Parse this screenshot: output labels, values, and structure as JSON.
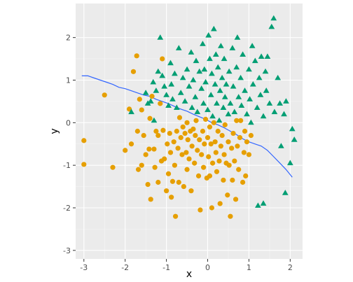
{
  "chart_data": {
    "type": "scatter",
    "title": "",
    "xlabel": "x",
    "ylabel": "y",
    "xlim": [
      -3.2,
      2.3
    ],
    "ylim": [
      -3.2,
      2.8
    ],
    "x_ticks": [
      -3,
      -2,
      -1,
      0,
      1,
      2
    ],
    "y_ticks": [
      -3,
      -2,
      -1,
      0,
      1,
      2
    ],
    "grid": true,
    "legend": "none",
    "panel_background": "#ebebeb",
    "series": [
      {
        "marker": "circle",
        "color": "#e69f00",
        "points": [
          [
            -3.0,
            -0.42
          ],
          [
            -3.0,
            -0.98
          ],
          [
            -2.5,
            0.65
          ],
          [
            -2.3,
            -1.05
          ],
          [
            -2.0,
            -0.65
          ],
          [
            -1.9,
            0.32
          ],
          [
            -1.85,
            -0.5
          ],
          [
            -1.8,
            1.2
          ],
          [
            -1.72,
            1.57
          ],
          [
            -1.7,
            -0.2
          ],
          [
            -1.68,
            -1.1
          ],
          [
            -1.65,
            0.55
          ],
          [
            -1.6,
            0.3
          ],
          [
            -1.6,
            -1.0
          ],
          [
            -1.55,
            -0.3
          ],
          [
            -1.5,
            -0.75
          ],
          [
            -1.45,
            -1.45
          ],
          [
            -1.42,
            -0.62
          ],
          [
            -1.4,
            0.1
          ],
          [
            -1.38,
            -1.8
          ],
          [
            -1.35,
            0.62
          ],
          [
            -1.3,
            -0.62
          ],
          [
            -1.28,
            -1.05
          ],
          [
            -1.25,
            -0.2
          ],
          [
            -1.2,
            -1.4
          ],
          [
            -1.2,
            -0.3
          ],
          [
            -1.15,
            0.45
          ],
          [
            -1.12,
            -0.9
          ],
          [
            -1.1,
            1.5
          ],
          [
            -1.08,
            -0.18
          ],
          [
            -1.05,
            -0.85
          ],
          [
            -1.0,
            -1.6
          ],
          [
            -0.98,
            -0.5
          ],
          [
            -0.95,
            -1.2
          ],
          [
            -0.92,
            -0.25
          ],
          [
            -0.9,
            -0.7
          ],
          [
            -0.88,
            -1.75
          ],
          [
            -0.85,
            -1.38
          ],
          [
            -0.82,
            -0.45
          ],
          [
            -0.8,
            -1.0
          ],
          [
            -0.78,
            -2.2
          ],
          [
            -0.75,
            -0.2
          ],
          [
            -0.72,
            -0.6
          ],
          [
            -0.7,
            -1.4
          ],
          [
            -0.68,
            0.12
          ],
          [
            -0.65,
            -0.35
          ],
          [
            -0.62,
            -0.75
          ],
          [
            -0.6,
            -0.1
          ],
          [
            -0.58,
            -1.5
          ],
          [
            -0.55,
            -0.25
          ],
          [
            -0.52,
            -0.7
          ],
          [
            -0.5,
            -1.1
          ],
          [
            -0.5,
            0.0
          ],
          [
            -0.48,
            -0.4
          ],
          [
            -0.45,
            -0.85
          ],
          [
            -0.42,
            -0.2
          ],
          [
            -0.4,
            -1.6
          ],
          [
            -0.38,
            -0.55
          ],
          [
            -0.35,
            -0.15
          ],
          [
            -0.32,
            -0.95
          ],
          [
            -0.3,
            -0.3
          ],
          [
            -0.28,
            0.05
          ],
          [
            -0.25,
            -0.65
          ],
          [
            -0.22,
            -1.25
          ],
          [
            -0.2,
            -0.4
          ],
          [
            -0.18,
            -2.05
          ],
          [
            -0.15,
            -0.75
          ],
          [
            -0.12,
            -0.2
          ],
          [
            -0.1,
            -1.05
          ],
          [
            -0.08,
            -0.5
          ],
          [
            -0.05,
            0.08
          ],
          [
            -0.02,
            -1.3
          ],
          [
            0.0,
            -0.35
          ],
          [
            0.02,
            -0.8
          ],
          [
            0.05,
            -1.25
          ],
          [
            0.05,
            -0.1
          ],
          [
            0.08,
            -0.5
          ],
          [
            0.1,
            -2.0
          ],
          [
            0.12,
            -0.95
          ],
          [
            0.15,
            0.0
          ],
          [
            0.18,
            -0.45
          ],
          [
            0.2,
            -0.7
          ],
          [
            0.22,
            -1.15
          ],
          [
            0.25,
            -0.2
          ],
          [
            0.28,
            -0.9
          ],
          [
            0.3,
            -1.9
          ],
          [
            0.32,
            -0.55
          ],
          [
            0.35,
            -0.3
          ],
          [
            0.38,
            -1.35
          ],
          [
            0.4,
            -0.75
          ],
          [
            0.42,
            -0.05
          ],
          [
            0.45,
            -0.95
          ],
          [
            0.48,
            -1.7
          ],
          [
            0.5,
            -0.45
          ],
          [
            0.52,
            -1.0
          ],
          [
            0.55,
            -2.2
          ],
          [
            0.58,
            -0.6
          ],
          [
            0.6,
            -1.35
          ],
          [
            0.62,
            -0.25
          ],
          [
            0.65,
            -0.9
          ],
          [
            0.68,
            -1.8
          ],
          [
            0.7,
            0.05
          ],
          [
            0.72,
            -0.55
          ],
          [
            0.75,
            -1.1
          ],
          [
            0.78,
            -0.35
          ],
          [
            0.8,
            0.05
          ],
          [
            0.85,
            -1.4
          ],
          [
            0.88,
            -0.7
          ],
          [
            0.9,
            -0.2
          ],
          [
            0.92,
            -1.25
          ],
          [
            0.95,
            -0.45
          ],
          [
            1.0,
            -0.75
          ],
          [
            1.05,
            -0.3
          ]
        ]
      },
      {
        "marker": "triangle",
        "color": "#009e73",
        "points": [
          [
            -1.85,
            0.25
          ],
          [
            -1.5,
            0.7
          ],
          [
            -1.45,
            0.45
          ],
          [
            -1.38,
            0.5
          ],
          [
            -1.32,
            0.95
          ],
          [
            -1.3,
            0.05
          ],
          [
            -1.25,
            0.75
          ],
          [
            -1.2,
            1.2
          ],
          [
            -1.15,
            2.0
          ],
          [
            -1.1,
            1.1
          ],
          [
            -1.05,
            0.85
          ],
          [
            -1.0,
            0.65
          ],
          [
            -0.95,
            0.4
          ],
          [
            -0.9,
            1.4
          ],
          [
            -0.88,
            0.9
          ],
          [
            -0.85,
            0.55
          ],
          [
            -0.8,
            1.15
          ],
          [
            -0.75,
            0.35
          ],
          [
            -0.7,
            1.75
          ],
          [
            -0.65,
            0.7
          ],
          [
            -0.6,
            1.05
          ],
          [
            -0.55,
            0.5
          ],
          [
            -0.5,
            1.25
          ],
          [
            -0.45,
            0.85
          ],
          [
            -0.4,
            1.65
          ],
          [
            -0.38,
            0.35
          ],
          [
            -0.35,
            1.0
          ],
          [
            -0.3,
            0.6
          ],
          [
            -0.28,
            1.45
          ],
          [
            -0.25,
            0.25
          ],
          [
            -0.2,
            1.2
          ],
          [
            -0.15,
            0.8
          ],
          [
            -0.12,
            1.85
          ],
          [
            -0.1,
            0.45
          ],
          [
            -0.08,
            1.25
          ],
          [
            -0.05,
            0.95
          ],
          [
            0.0,
            0.3
          ],
          [
            0.02,
            2.05
          ],
          [
            0.05,
            1.5
          ],
          [
            0.08,
            0.65
          ],
          [
            0.1,
            1.15
          ],
          [
            0.12,
            0.15
          ],
          [
            0.15,
            2.2
          ],
          [
            0.18,
            0.9
          ],
          [
            0.2,
            1.6
          ],
          [
            0.22,
            0.45
          ],
          [
            0.25,
            1.3
          ],
          [
            0.28,
            0.05
          ],
          [
            0.3,
            0.75
          ],
          [
            0.32,
            1.8
          ],
          [
            0.35,
            1.05
          ],
          [
            0.38,
            0.35
          ],
          [
            0.4,
            1.5
          ],
          [
            0.42,
            0.6
          ],
          [
            0.45,
            0.9
          ],
          [
            0.5,
            0.2
          ],
          [
            0.52,
            1.2
          ],
          [
            0.55,
            0.45
          ],
          [
            0.6,
            1.75
          ],
          [
            0.62,
            0.85
          ],
          [
            0.65,
            0.25
          ],
          [
            0.7,
            1.3
          ],
          [
            0.72,
            2.0
          ],
          [
            0.75,
            0.6
          ],
          [
            0.8,
            1.05
          ],
          [
            0.82,
            0.4
          ],
          [
            0.85,
            1.6
          ],
          [
            0.9,
            0.75
          ],
          [
            0.95,
            0.2
          ],
          [
            1.0,
            1.25
          ],
          [
            1.02,
            0.55
          ],
          [
            1.05,
            0.0
          ],
          [
            1.08,
            1.8
          ],
          [
            1.1,
            0.9
          ],
          [
            1.15,
            1.45
          ],
          [
            1.2,
            0.35
          ],
          [
            1.22,
            -1.95
          ],
          [
            1.25,
            1.05
          ],
          [
            1.28,
            0.65
          ],
          [
            1.3,
            1.55
          ],
          [
            1.35,
            0.15
          ],
          [
            1.35,
            -1.9
          ],
          [
            1.4,
            1.2
          ],
          [
            1.42,
            0.75
          ],
          [
            1.45,
            1.55
          ],
          [
            1.5,
            0.45
          ],
          [
            1.55,
            2.25
          ],
          [
            1.6,
            2.45
          ],
          [
            1.62,
            0.25
          ],
          [
            1.7,
            1.05
          ],
          [
            1.75,
            0.45
          ],
          [
            1.78,
            -0.55
          ],
          [
            1.85,
            0.2
          ],
          [
            1.88,
            -1.65
          ],
          [
            1.9,
            0.5
          ],
          [
            2.0,
            -0.95
          ],
          [
            2.05,
            -0.15
          ],
          [
            2.1,
            -0.4
          ]
        ]
      }
    ],
    "fitted_line": {
      "color": "#3366ff",
      "points": [
        [
          -3.05,
          1.1
        ],
        [
          -2.9,
          1.1
        ],
        [
          -2.75,
          1.05
        ],
        [
          -2.6,
          1.0
        ],
        [
          -2.45,
          0.95
        ],
        [
          -2.3,
          0.9
        ],
        [
          -2.15,
          0.83
        ],
        [
          -2.0,
          0.8
        ],
        [
          -1.85,
          0.75
        ],
        [
          -1.7,
          0.7
        ],
        [
          -1.55,
          0.65
        ],
        [
          -1.4,
          0.62
        ],
        [
          -1.25,
          0.55
        ],
        [
          -1.1,
          0.5
        ],
        [
          -0.95,
          0.45
        ],
        [
          -0.8,
          0.38
        ],
        [
          -0.65,
          0.32
        ],
        [
          -0.5,
          0.27
        ],
        [
          -0.35,
          0.2
        ],
        [
          -0.2,
          0.14
        ],
        [
          -0.05,
          0.08
        ],
        [
          0.1,
          0.0
        ],
        [
          0.25,
          -0.05
        ],
        [
          0.4,
          -0.12
        ],
        [
          0.55,
          -0.2
        ],
        [
          0.7,
          -0.28
        ],
        [
          0.85,
          -0.38
        ],
        [
          1.0,
          -0.45
        ],
        [
          1.15,
          -0.5
        ],
        [
          1.3,
          -0.55
        ],
        [
          1.45,
          -0.65
        ],
        [
          1.6,
          -0.8
        ],
        [
          1.75,
          -0.95
        ],
        [
          1.9,
          -1.1
        ],
        [
          2.05,
          -1.28
        ]
      ]
    }
  }
}
